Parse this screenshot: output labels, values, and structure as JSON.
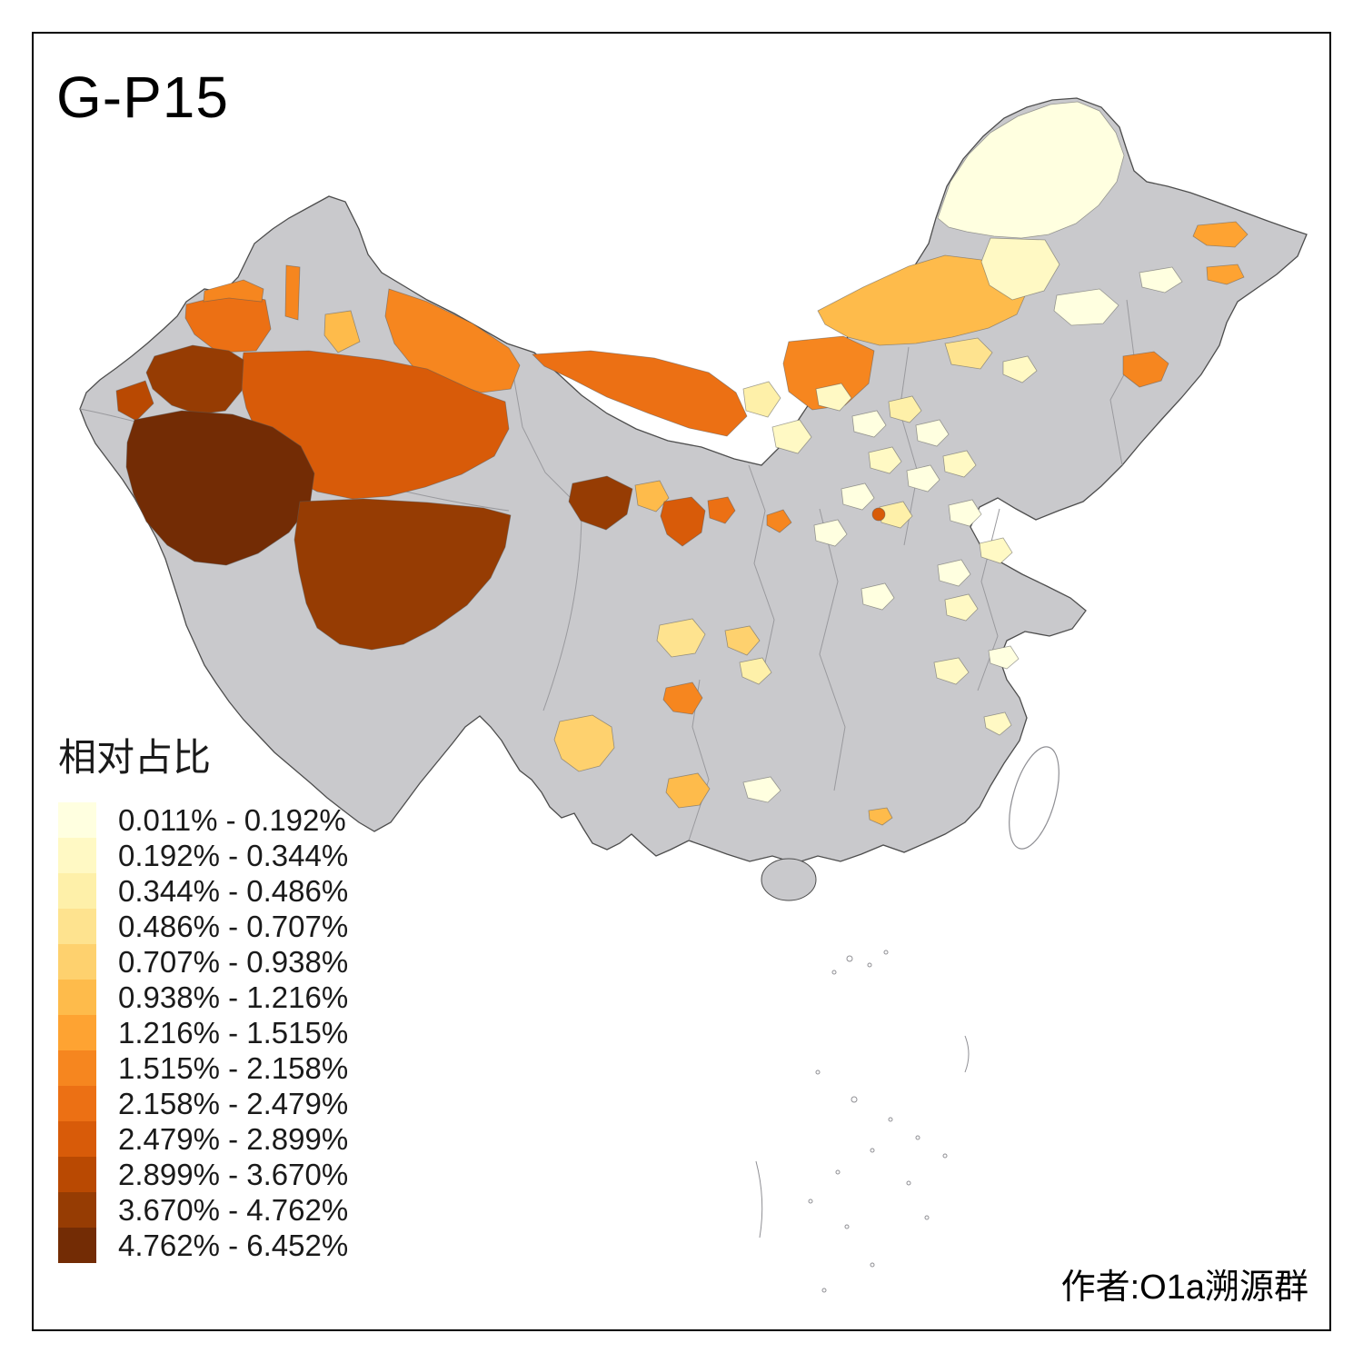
{
  "title": "G-P15",
  "attribution": "作者:O1a溯源群",
  "legend": {
    "title": "相对占比",
    "items": [
      {
        "label": "0.011% - 0.192%",
        "color": "#FFFFE0"
      },
      {
        "label": "0.192% - 0.344%",
        "color": "#FFF9C4"
      },
      {
        "label": "0.344% - 0.486%",
        "color": "#FEF0A9"
      },
      {
        "label": "0.486% - 0.707%",
        "color": "#FEE38F"
      },
      {
        "label": "0.707% - 0.938%",
        "color": "#FED16E"
      },
      {
        "label": "0.938% - 1.216%",
        "color": "#FEBB4B"
      },
      {
        "label": "1.216% - 1.515%",
        "color": "#FEA332"
      },
      {
        "label": "1.515% - 2.158%",
        "color": "#F6861F"
      },
      {
        "label": "2.158% - 2.479%",
        "color": "#EC7014"
      },
      {
        "label": "2.479% - 2.899%",
        "color": "#D85B09"
      },
      {
        "label": "2.899% - 3.670%",
        "color": "#B94902"
      },
      {
        "label": "3.670% - 4.762%",
        "color": "#963C03"
      },
      {
        "label": "4.762% - 6.452%",
        "color": "#732C05"
      }
    ]
  },
  "map": {
    "no_data_color": "#C9C9CC",
    "outline_color": "#4D4D4D",
    "background": "#FFFFFF",
    "regions": {
      "r01": 9,
      "r02": 8,
      "r03": 8,
      "r04": 6,
      "r05": 8,
      "r06": 10,
      "r07": 12,
      "r08": 11,
      "r09": 13,
      "r10": 12,
      "r11": 9,
      "r12": 8,
      "r13": 6,
      "r14": 4,
      "r15": 2,
      "r16": 1,
      "r17": 2,
      "r18": 7,
      "r19": 7,
      "r20": 8,
      "r21": 1,
      "r22": 1,
      "r23": 12,
      "r24": 6,
      "r25": 10,
      "r26": 9,
      "r27": 8,
      "r28": 3,
      "r29": 2,
      "r30": 2,
      "r31": 1,
      "r32": 3,
      "r33": 1,
      "r34": 2,
      "r35": 1,
      "r36": 2,
      "r37": 1,
      "r38": 3,
      "r39": 1,
      "r40": 10,
      "r41": 2,
      "r42": 1,
      "r43": 4,
      "r44": 5,
      "r45": 3,
      "r46": 8,
      "r47": 5,
      "r48": 6,
      "r49": 1,
      "r50": 2,
      "r51": 2,
      "r52": 6,
      "r53": 1,
      "r54": 1,
      "r55": 1,
      "r56": 2
    }
  }
}
